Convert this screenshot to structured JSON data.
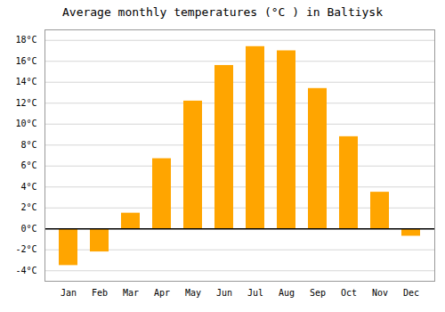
{
  "chart_data": {
    "type": "bar",
    "title": "Average monthly temperatures (°C ) in Baltiysk",
    "categories": [
      "Jan",
      "Feb",
      "Mar",
      "Apr",
      "May",
      "Jun",
      "Jul",
      "Aug",
      "Sep",
      "Oct",
      "Nov",
      "Dec"
    ],
    "values": [
      -3.5,
      -2.2,
      1.5,
      6.7,
      12.2,
      15.6,
      17.4,
      17.0,
      13.4,
      8.8,
      3.5,
      -0.7
    ],
    "color": "#FFA500",
    "ylim": [
      -5,
      19
    ],
    "yticks": [
      {
        "value": -4,
        "label": "-4°C"
      },
      {
        "value": -2,
        "label": "-2°C"
      },
      {
        "value": 0,
        "label": "0°C"
      },
      {
        "value": 2,
        "label": "2°C"
      },
      {
        "value": 4,
        "label": "4°C"
      },
      {
        "value": 6,
        "label": "6°C"
      },
      {
        "value": 8,
        "label": "8°C"
      },
      {
        "value": 10,
        "label": "10°C"
      },
      {
        "value": 12,
        "label": "12°C"
      },
      {
        "value": 14,
        "label": "14°C"
      },
      {
        "value": 16,
        "label": "16°C"
      },
      {
        "value": 18,
        "label": "18°C"
      }
    ],
    "grid": true
  }
}
